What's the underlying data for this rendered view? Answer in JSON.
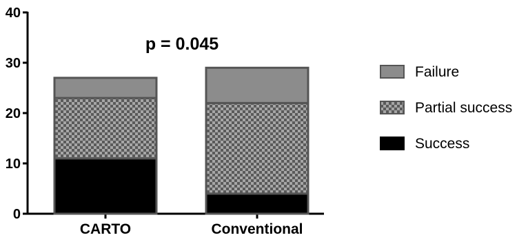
{
  "chart_data": {
    "type": "bar",
    "stacked": true,
    "categories": [
      "CARTO",
      "Conventional"
    ],
    "series": [
      {
        "name": "Success",
        "values": [
          11,
          4
        ],
        "color": "#000000",
        "pattern": "solid"
      },
      {
        "name": "Partial success",
        "values": [
          12,
          18
        ],
        "color": "#808080",
        "pattern": "checker"
      },
      {
        "name": "Failure",
        "values": [
          4,
          7
        ],
        "color": "#8c8c8c",
        "pattern": "solid"
      }
    ],
    "legend_order": [
      "Failure",
      "Partial success",
      "Success"
    ],
    "annotation": "p = 0.045",
    "title": "",
    "xlabel": "",
    "ylabel": "",
    "ylim": [
      0,
      40
    ],
    "yticks": [
      0,
      10,
      20,
      30,
      40
    ],
    "grid": false,
    "legend_position": "right"
  }
}
